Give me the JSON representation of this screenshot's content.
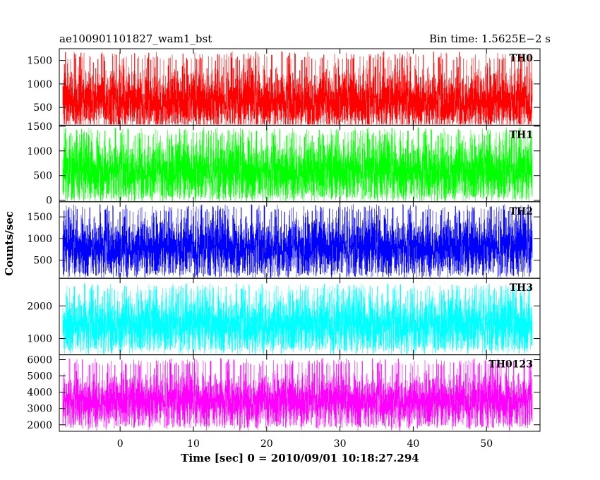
{
  "header": {
    "left_title": "ae100901101827_wam1_bst",
    "right_title": "Bin time: 1.5625E−2 s"
  },
  "chart_data": {
    "type": "line",
    "xlabel": "Time [sec] 0 = 2010/09/01 10:18:27.294",
    "ylabel": "Counts/sec",
    "xlim": [
      -8.3,
      57.3
    ],
    "data_xrange": [
      -7.8,
      56.2
    ],
    "x_ticks": [
      0,
      10,
      20,
      30,
      40,
      50
    ],
    "x_tick_labels": [
      "0",
      "10",
      "20",
      "30",
      "40",
      "50"
    ],
    "bin_time_s": 0.015625,
    "panels": [
      {
        "name": "TH0",
        "color": "#ff0000",
        "ylim": [
          120,
          1750
        ],
        "baseline": 660,
        "spread": 330,
        "min_typ": 200,
        "max_typ": 1700,
        "y_ticks": [
          500,
          1000,
          1500
        ],
        "y_tick_labels": [
          "500",
          "1000",
          "1500"
        ]
      },
      {
        "name": "TH1",
        "color": "#00ff00",
        "ylim": [
          -30,
          1520
        ],
        "baseline": 620,
        "spread": 300,
        "min_typ": 20,
        "max_typ": 1480,
        "y_ticks": [
          0,
          500,
          1000,
          1500
        ],
        "y_tick_labels": [
          "0",
          "500",
          "1000",
          "1500"
        ]
      },
      {
        "name": "TH2",
        "color": "#0000ff",
        "ylim": [
          80,
          1850
        ],
        "baseline": 830,
        "spread": 320,
        "min_typ": 120,
        "max_typ": 1800,
        "y_ticks": [
          500,
          1000,
          1500
        ],
        "y_tick_labels": [
          "500",
          "1000",
          "1500"
        ]
      },
      {
        "name": "TH3",
        "color": "#00ffff",
        "ylim": [
          500,
          2850
        ],
        "baseline": 1480,
        "spread": 420,
        "min_typ": 600,
        "max_typ": 2700,
        "y_ticks": [
          1000,
          2000
        ],
        "y_tick_labels": [
          "1000",
          "2000"
        ]
      },
      {
        "name": "TH0123",
        "color": "#ff00ff",
        "ylim": [
          1600,
          6300
        ],
        "baseline": 3550,
        "spread": 750,
        "min_typ": 1800,
        "max_typ": 6100,
        "y_ticks": [
          2000,
          3000,
          4000,
          5000,
          6000
        ],
        "y_tick_labels": [
          "2000",
          "3000",
          "4000",
          "5000",
          "6000"
        ]
      }
    ]
  }
}
